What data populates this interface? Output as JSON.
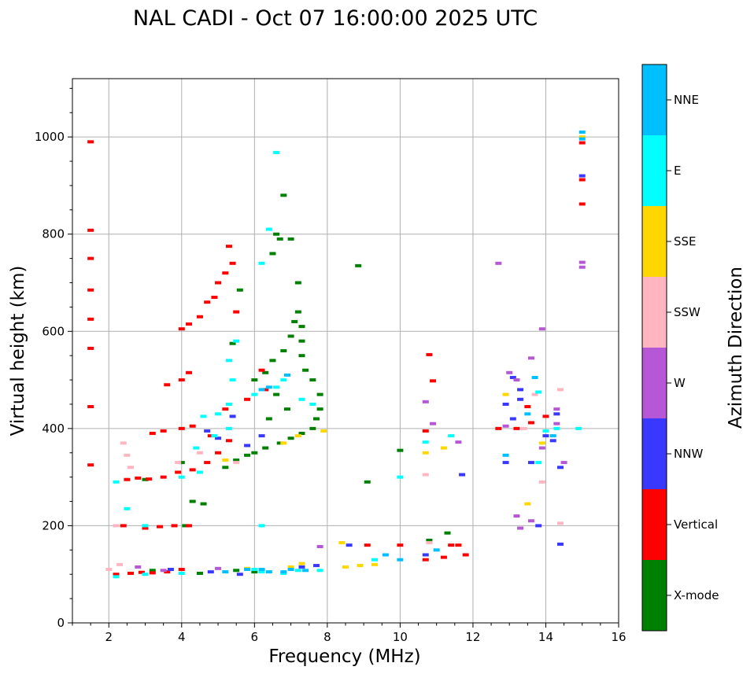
{
  "chart_data": {
    "type": "scatter",
    "title": "NAL CADI - Oct 07 16:00:00 2025 UTC",
    "xlabel": "Frequency (MHz)",
    "ylabel": "Virtual height (km)",
    "xlim": [
      1,
      16
    ],
    "ylim": [
      0,
      1120
    ],
    "xticks": [
      2,
      4,
      6,
      8,
      10,
      12,
      14,
      16
    ],
    "yticks": [
      0,
      200,
      400,
      600,
      800,
      1000
    ],
    "grid": true,
    "colorbar": {
      "label": "Azimuth Direction",
      "categories": [
        "X-mode",
        "Vertical",
        "NNW",
        "W",
        "SSW",
        "SSE",
        "E",
        "NNE"
      ],
      "colors": [
        "#008000",
        "#ff0000",
        "#3838ff",
        "#b657d6",
        "#ffb6c1",
        "#ffd700",
        "#00ffff",
        "#00bfff"
      ]
    },
    "series": [
      {
        "name": "X-mode",
        "points": [
          [
            5.4,
            575
          ],
          [
            5.6,
            685
          ],
          [
            6.5,
            760
          ],
          [
            6.6,
            800
          ],
          [
            6.7,
            790
          ],
          [
            6.8,
            880
          ],
          [
            7.0,
            790
          ],
          [
            7.2,
            700
          ],
          [
            7.2,
            640
          ],
          [
            7.3,
            610
          ],
          [
            7.3,
            580
          ],
          [
            7.3,
            550
          ],
          [
            7.4,
            520
          ],
          [
            7.6,
            500
          ],
          [
            7.8,
            470
          ],
          [
            7.8,
            440
          ],
          [
            7.7,
            420
          ],
          [
            7.6,
            400
          ],
          [
            7.3,
            390
          ],
          [
            7.0,
            380
          ],
          [
            6.7,
            370
          ],
          [
            6.3,
            360
          ],
          [
            6.0,
            350
          ],
          [
            5.8,
            345
          ],
          [
            5.5,
            335
          ],
          [
            5.2,
            320
          ],
          [
            6.0,
            500
          ],
          [
            6.3,
            515
          ],
          [
            6.5,
            540
          ],
          [
            6.8,
            560
          ],
          [
            7.0,
            590
          ],
          [
            7.1,
            620
          ],
          [
            6.6,
            470
          ],
          [
            6.9,
            440
          ],
          [
            6.4,
            420
          ],
          [
            8.85,
            735
          ],
          [
            10.0,
            355
          ],
          [
            9.1,
            290
          ],
          [
            11.3,
            185
          ],
          [
            4.3,
            250
          ],
          [
            4.6,
            245
          ],
          [
            4.1,
            200
          ],
          [
            5.5,
            108
          ],
          [
            6.0,
            105
          ],
          [
            4.5,
            102
          ],
          [
            10.8,
            170
          ],
          [
            3.2,
            108
          ],
          [
            3.0,
            295
          ],
          [
            4.0,
            330
          ]
        ]
      },
      {
        "name": "Vertical",
        "points": [
          [
            1.5,
            990
          ],
          [
            1.5,
            808
          ],
          [
            1.5,
            750
          ],
          [
            1.5,
            685
          ],
          [
            1.5,
            625
          ],
          [
            1.5,
            565
          ],
          [
            1.5,
            445
          ],
          [
            1.5,
            325
          ],
          [
            2.5,
            295
          ],
          [
            2.8,
            298
          ],
          [
            3.1,
            296
          ],
          [
            3.5,
            300
          ],
          [
            3.9,
            310
          ],
          [
            4.3,
            315
          ],
          [
            4.7,
            330
          ],
          [
            5.0,
            350
          ],
          [
            5.3,
            375
          ],
          [
            4.8,
            385
          ],
          [
            4.3,
            405
          ],
          [
            4.0,
            400
          ],
          [
            3.5,
            395
          ],
          [
            3.2,
            390
          ],
          [
            4.0,
            500
          ],
          [
            4.2,
            515
          ],
          [
            3.6,
            490
          ],
          [
            4.0,
            605
          ],
          [
            4.2,
            615
          ],
          [
            4.5,
            630
          ],
          [
            4.7,
            660
          ],
          [
            4.9,
            670
          ],
          [
            5.0,
            700
          ],
          [
            5.2,
            720
          ],
          [
            5.4,
            740
          ],
          [
            5.3,
            775
          ],
          [
            5.5,
            640
          ],
          [
            6.2,
            520
          ],
          [
            6.3,
            480
          ],
          [
            5.8,
            460
          ],
          [
            5.2,
            440
          ],
          [
            2.4,
            200
          ],
          [
            3.0,
            195
          ],
          [
            3.4,
            198
          ],
          [
            3.8,
            200
          ],
          [
            4.2,
            200
          ],
          [
            2.2,
            100
          ],
          [
            2.6,
            102
          ],
          [
            2.9,
            104
          ],
          [
            3.2,
            103
          ],
          [
            3.6,
            105
          ],
          [
            4.0,
            110
          ],
          [
            9.1,
            160
          ],
          [
            10.0,
            160
          ],
          [
            10.7,
            395
          ],
          [
            10.8,
            552
          ],
          [
            10.9,
            498
          ],
          [
            11.4,
            160
          ],
          [
            11.6,
            160
          ],
          [
            12.7,
            400
          ],
          [
            13.2,
            400
          ],
          [
            13.5,
            445
          ],
          [
            13.6,
            412
          ],
          [
            14.0,
            425
          ],
          [
            15.0,
            912
          ],
          [
            15.0,
            988
          ],
          [
            15.0,
            862
          ],
          [
            10.7,
            130
          ],
          [
            11.2,
            135
          ],
          [
            11.8,
            140
          ]
        ]
      },
      {
        "name": "NNW",
        "points": [
          [
            5.0,
            380
          ],
          [
            5.4,
            425
          ],
          [
            6.2,
            385
          ],
          [
            5.8,
            365
          ],
          [
            4.7,
            395
          ],
          [
            3.7,
            110
          ],
          [
            4.8,
            105
          ],
          [
            5.6,
            100
          ],
          [
            7.3,
            115
          ],
          [
            7.7,
            118
          ],
          [
            8.6,
            160
          ],
          [
            10.7,
            140
          ],
          [
            11.7,
            305
          ],
          [
            12.9,
            330
          ],
          [
            13.1,
            505
          ],
          [
            13.3,
            480
          ],
          [
            13.3,
            460
          ],
          [
            13.6,
            330
          ],
          [
            13.8,
            200
          ],
          [
            14.0,
            385
          ],
          [
            14.2,
            375
          ],
          [
            14.4,
            320
          ],
          [
            14.4,
            162
          ],
          [
            15.0,
            920
          ],
          [
            12.9,
            450
          ],
          [
            13.1,
            420
          ],
          [
            14.3,
            430
          ]
        ]
      },
      {
        "name": "W",
        "points": [
          [
            7.8,
            157
          ],
          [
            12.7,
            740
          ],
          [
            13.0,
            515
          ],
          [
            13.2,
            500
          ],
          [
            13.6,
            545
          ],
          [
            13.9,
            605
          ],
          [
            14.3,
            440
          ],
          [
            14.3,
            410
          ],
          [
            15.0,
            742
          ],
          [
            15.0,
            732
          ],
          [
            13.2,
            220
          ],
          [
            13.3,
            195
          ],
          [
            13.6,
            210
          ],
          [
            13.9,
            360
          ],
          [
            10.7,
            455
          ],
          [
            11.6,
            372
          ],
          [
            12.9,
            405
          ],
          [
            10.9,
            410
          ],
          [
            3.5,
            108
          ],
          [
            2.8,
            115
          ],
          [
            5.0,
            112
          ],
          [
            14.5,
            330
          ]
        ]
      },
      {
        "name": "SSW",
        "points": [
          [
            2.4,
            370
          ],
          [
            2.5,
            345
          ],
          [
            2.6,
            320
          ],
          [
            2.2,
            200
          ],
          [
            2.0,
            110
          ],
          [
            2.3,
            120
          ],
          [
            4.5,
            350
          ],
          [
            5.5,
            330
          ],
          [
            10.7,
            305
          ],
          [
            13.9,
            290
          ],
          [
            14.4,
            480
          ],
          [
            14.4,
            205
          ],
          [
            13.7,
            470
          ],
          [
            13.4,
            400
          ],
          [
            10.8,
            165
          ],
          [
            3.9,
            330
          ]
        ]
      },
      {
        "name": "SSE",
        "points": [
          [
            6.8,
            370
          ],
          [
            7.2,
            385
          ],
          [
            5.2,
            335
          ],
          [
            7.0,
            115
          ],
          [
            7.3,
            122
          ],
          [
            8.5,
            115
          ],
          [
            8.9,
            118
          ],
          [
            8.4,
            165
          ],
          [
            9.3,
            120
          ],
          [
            10.7,
            350
          ],
          [
            11.2,
            360
          ],
          [
            12.9,
            470
          ],
          [
            13.5,
            245
          ],
          [
            13.9,
            370
          ],
          [
            15.0,
            1000
          ],
          [
            7.9,
            395
          ],
          [
            5.8,
            112
          ]
        ]
      },
      {
        "name": "E",
        "points": [
          [
            5.0,
            430
          ],
          [
            4.6,
            425
          ],
          [
            5.3,
            450
          ],
          [
            5.4,
            500
          ],
          [
            5.3,
            540
          ],
          [
            5.5,
            580
          ],
          [
            6.2,
            740
          ],
          [
            6.4,
            810
          ],
          [
            6.6,
            968
          ],
          [
            6.6,
            485
          ],
          [
            6.8,
            500
          ],
          [
            7.3,
            460
          ],
          [
            7.6,
            450
          ],
          [
            6.0,
            470
          ],
          [
            5.3,
            400
          ],
          [
            4.9,
            385
          ],
          [
            4.4,
            360
          ],
          [
            4.0,
            300
          ],
          [
            4.5,
            310
          ],
          [
            2.2,
            290
          ],
          [
            2.5,
            235
          ],
          [
            3.0,
            200
          ],
          [
            6.2,
            200
          ],
          [
            6.0,
            110
          ],
          [
            6.8,
            102
          ],
          [
            7.2,
            108
          ],
          [
            7.8,
            108
          ],
          [
            9.3,
            130
          ],
          [
            10.0,
            300
          ],
          [
            10.7,
            372
          ],
          [
            11.4,
            385
          ],
          [
            13.8,
            475
          ],
          [
            13.8,
            330
          ],
          [
            14.0,
            395
          ],
          [
            14.3,
            400
          ],
          [
            14.9,
            400
          ],
          [
            6.2,
            105
          ],
          [
            3.0,
            100
          ],
          [
            4.0,
            102
          ],
          [
            2.2,
            95
          ]
        ]
      },
      {
        "name": "NNE",
        "points": [
          [
            15.0,
            1010
          ],
          [
            15.0,
            996
          ],
          [
            6.4,
            105
          ],
          [
            6.8,
            105
          ],
          [
            7.4,
            108
          ],
          [
            5.2,
            105
          ],
          [
            5.8,
            110
          ],
          [
            6.2,
            110
          ],
          [
            7.0,
            110
          ],
          [
            9.6,
            140
          ],
          [
            10.0,
            130
          ],
          [
            11.0,
            150
          ],
          [
            12.9,
            345
          ],
          [
            13.5,
            430
          ],
          [
            14.2,
            385
          ],
          [
            13.7,
            505
          ],
          [
            6.2,
            480
          ],
          [
            6.4,
            485
          ],
          [
            6.9,
            510
          ]
        ]
      }
    ]
  }
}
